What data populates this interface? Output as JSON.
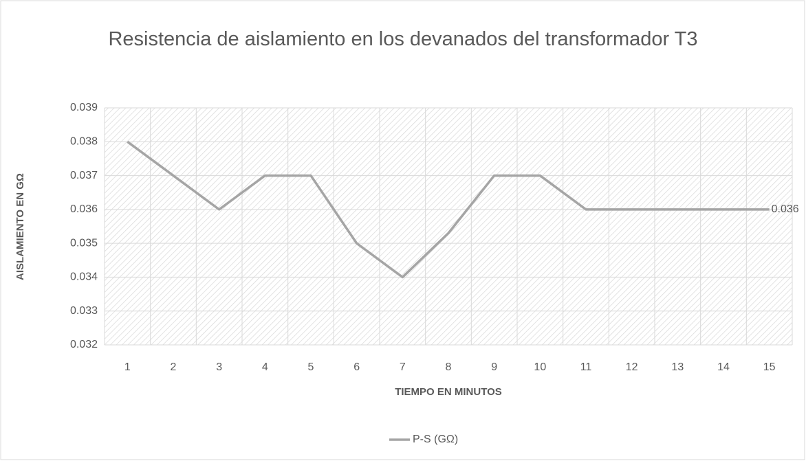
{
  "chart_data": {
    "type": "line",
    "title": "Resistencia de aislamiento en los devanados del transformador T3",
    "xlabel": "TIEMPO EN MINUTOS",
    "ylabel": "AISLAMIENTO EN GΩ",
    "categories": [
      "1",
      "2",
      "3",
      "4",
      "5",
      "6",
      "7",
      "8",
      "9",
      "10",
      "11",
      "12",
      "13",
      "14",
      "15"
    ],
    "series": [
      {
        "name": "P-S (GΩ)",
        "color": "#a5a5a5",
        "values": [
          0.038,
          0.037,
          0.036,
          0.037,
          0.037,
          0.035,
          0.034,
          0.0353,
          0.037,
          0.037,
          0.036,
          0.036,
          0.036,
          0.036,
          0.036
        ]
      }
    ],
    "ylim": [
      0.032,
      0.039
    ],
    "yticks": [
      0.032,
      0.033,
      0.034,
      0.035,
      0.036,
      0.037,
      0.038,
      0.039
    ],
    "grid": true,
    "legend": "bottom"
  }
}
